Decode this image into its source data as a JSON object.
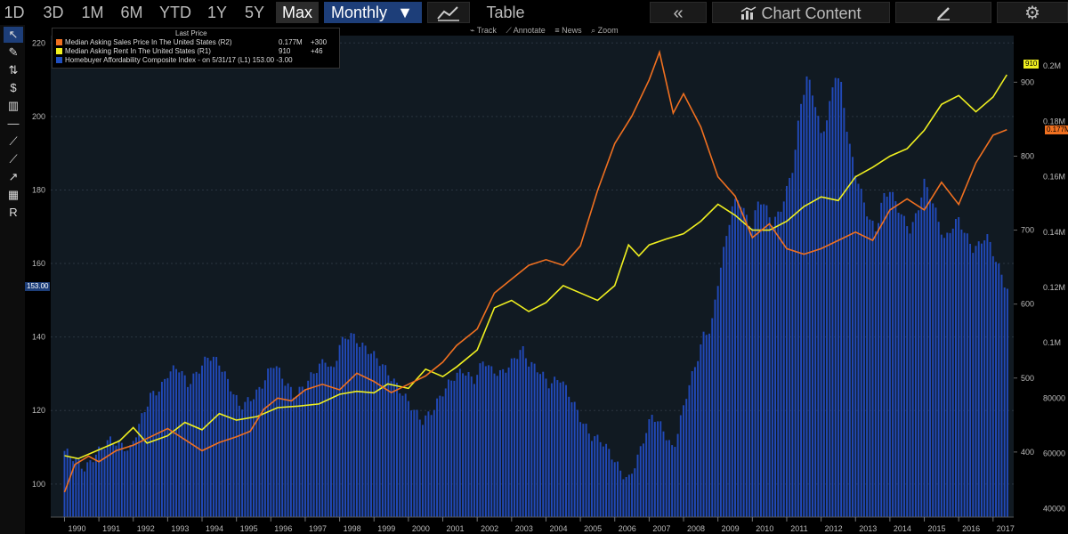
{
  "toolbar": {
    "ranges": [
      "1D",
      "3D",
      "1M",
      "6M",
      "YTD",
      "1Y",
      "5Y",
      "Max"
    ],
    "active_range": "Max",
    "frequency": "Monthly",
    "frequency_arrow": "▼",
    "table_label": "Table",
    "back_label": "«",
    "chart_content_label": "Chart Content",
    "edit_icon": "edit-icon",
    "settings_icon": "gear-icon"
  },
  "subtoolbar": [
    "Track",
    "Annotate",
    "News",
    "Zoom"
  ],
  "left_tools": [
    "cursor-icon",
    "pen-icon",
    "percent-icon",
    "dollar-icon",
    "chart-type-icon",
    "horizontal-line-icon",
    "trend-line-icon",
    "segment-icon",
    "ray-icon",
    "fill-icon",
    "text-icon"
  ],
  "legend": {
    "title": "Last Price",
    "items": [
      {
        "label": "Median Asking Sales Price In The United States  (R2)",
        "value": "0.177M",
        "change": "+300",
        "color": "#f07020"
      },
      {
        "label": "Median Asking Rent In The United States  (R1)",
        "value": "910",
        "change": "+46",
        "color": "#f0f020"
      },
      {
        "label": "Homebuyer Affordability Composite Index -  on 5/31/17  (L1)",
        "value": "153.00",
        "change": "-3.00",
        "color": "#1f4fc0"
      }
    ]
  },
  "chart_data": {
    "type": "bar",
    "x_ticks": [
      "1990",
      "1991",
      "1992",
      "1993",
      "1994",
      "1995",
      "1996",
      "1997",
      "1998",
      "1999",
      "2000",
      "2001",
      "2002",
      "2003",
      "2004",
      "2005",
      "2006",
      "2007",
      "2008",
      "2009",
      "2010",
      "2011",
      "2012",
      "2013",
      "2014",
      "2015",
      "2016",
      "2017"
    ],
    "left_axis": {
      "ticks": [
        100,
        120,
        140,
        160,
        180,
        200,
        220
      ],
      "ylim": [
        91,
        222
      ],
      "last_tag": "153.00"
    },
    "right1_axis": {
      "ticks": [
        400,
        500,
        600,
        700,
        800,
        900
      ],
      "ylim": [
        312,
        963
      ],
      "last_tag": "910"
    },
    "right2_axis": {
      "ticks": [
        "40000",
        "60000",
        "80000",
        "0.1M",
        "0.12M",
        "0.14M",
        "0.16M",
        "0.18M",
        "0.2M"
      ],
      "tick_values": [
        40000,
        60000,
        80000,
        100000,
        120000,
        140000,
        160000,
        180000,
        200000
      ],
      "ylim": [
        37000,
        211000
      ],
      "last_tag": "0.177M"
    },
    "grid": true,
    "legend_position": "top-left",
    "series": [
      {
        "name": "Homebuyer Affordability Composite Index",
        "axis": "left",
        "type": "bar",
        "color": "#2149b8",
        "points": [
          [
            1990.0,
            109
          ],
          [
            1990.3,
            107
          ],
          [
            1990.6,
            104
          ],
          [
            1990.9,
            108
          ],
          [
            1991.3,
            112
          ],
          [
            1991.6,
            111
          ],
          [
            1991.9,
            109
          ],
          [
            1992.2,
            117
          ],
          [
            1992.5,
            124
          ],
          [
            1992.8,
            126
          ],
          [
            1993.0,
            130
          ],
          [
            1993.3,
            132
          ],
          [
            1993.6,
            127
          ],
          [
            1993.9,
            131
          ],
          [
            1994.2,
            135
          ],
          [
            1994.5,
            133
          ],
          [
            1994.8,
            127
          ],
          [
            1995.1,
            121
          ],
          [
            1995.4,
            123
          ],
          [
            1995.7,
            126
          ],
          [
            1995.9,
            130
          ],
          [
            1996.1,
            133
          ],
          [
            1996.4,
            128
          ],
          [
            1996.7,
            124
          ],
          [
            1997.0,
            127
          ],
          [
            1997.3,
            131
          ],
          [
            1997.6,
            134
          ],
          [
            1997.8,
            130
          ],
          [
            1998.0,
            138
          ],
          [
            1998.3,
            141
          ],
          [
            1998.6,
            138
          ],
          [
            1998.9,
            136
          ],
          [
            1999.2,
            133
          ],
          [
            1999.5,
            129
          ],
          [
            1999.8,
            125
          ],
          [
            2000.1,
            121
          ],
          [
            2000.4,
            117
          ],
          [
            2000.7,
            120
          ],
          [
            2001.0,
            125
          ],
          [
            2001.3,
            129
          ],
          [
            2001.6,
            131
          ],
          [
            2001.9,
            128
          ],
          [
            2002.2,
            134
          ],
          [
            2002.4,
            131
          ],
          [
            2002.7,
            130
          ],
          [
            2003.0,
            133
          ],
          [
            2003.3,
            137
          ],
          [
            2003.5,
            133
          ],
          [
            2003.8,
            131
          ],
          [
            2004.1,
            127
          ],
          [
            2004.4,
            129
          ],
          [
            2004.7,
            124
          ],
          [
            2005.0,
            118
          ],
          [
            2005.3,
            113
          ],
          [
            2005.6,
            112
          ],
          [
            2005.9,
            108
          ],
          [
            2006.2,
            103
          ],
          [
            2006.4,
            101
          ],
          [
            2006.7,
            108
          ],
          [
            2006.9,
            114
          ],
          [
            2007.1,
            119
          ],
          [
            2007.4,
            115
          ],
          [
            2007.7,
            109
          ],
          [
            2007.9,
            117
          ],
          [
            2008.1,
            125
          ],
          [
            2008.4,
            134
          ],
          [
            2008.6,
            141
          ],
          [
            2008.8,
            142
          ],
          [
            2009.0,
            155
          ],
          [
            2009.2,
            165
          ],
          [
            2009.4,
            175
          ],
          [
            2009.6,
            178
          ],
          [
            2009.8,
            173
          ],
          [
            2010.0,
            170
          ],
          [
            2010.2,
            178
          ],
          [
            2010.4,
            175
          ],
          [
            2010.6,
            171
          ],
          [
            2010.8,
            174
          ],
          [
            2011.0,
            180
          ],
          [
            2011.2,
            187
          ],
          [
            2011.4,
            203
          ],
          [
            2011.6,
            211
          ],
          [
            2011.8,
            205
          ],
          [
            2012.0,
            195
          ],
          [
            2012.2,
            200
          ],
          [
            2012.4,
            212
          ],
          [
            2012.6,
            208
          ],
          [
            2012.8,
            193
          ],
          [
            2013.0,
            185
          ],
          [
            2013.2,
            178
          ],
          [
            2013.4,
            172
          ],
          [
            2013.6,
            169
          ],
          [
            2013.8,
            178
          ],
          [
            2014.0,
            180
          ],
          [
            2014.2,
            176
          ],
          [
            2014.4,
            172
          ],
          [
            2014.6,
            169
          ],
          [
            2014.8,
            174
          ],
          [
            2015.0,
            182
          ],
          [
            2015.2,
            178
          ],
          [
            2015.4,
            172
          ],
          [
            2015.6,
            166
          ],
          [
            2015.8,
            170
          ],
          [
            2016.0,
            172
          ],
          [
            2016.2,
            168
          ],
          [
            2016.4,
            164
          ],
          [
            2016.6,
            165
          ],
          [
            2016.8,
            168
          ],
          [
            2017.0,
            163
          ],
          [
            2017.2,
            158
          ],
          [
            2017.4,
            153
          ]
        ]
      },
      {
        "name": "Median Asking Rent In The United States",
        "axis": "right1",
        "type": "line",
        "color": "#f0f020",
        "points": [
          [
            1990.0,
            395
          ],
          [
            1990.4,
            391
          ],
          [
            1991.0,
            403
          ],
          [
            1991.6,
            415
          ],
          [
            1992.0,
            433
          ],
          [
            1992.4,
            412
          ],
          [
            1993.0,
            422
          ],
          [
            1993.5,
            440
          ],
          [
            1994.0,
            430
          ],
          [
            1994.5,
            452
          ],
          [
            1995.0,
            443
          ],
          [
            1995.6,
            448
          ],
          [
            1996.2,
            460
          ],
          [
            1996.8,
            462
          ],
          [
            1997.4,
            465
          ],
          [
            1998.0,
            478
          ],
          [
            1998.5,
            482
          ],
          [
            1999.0,
            480
          ],
          [
            1999.4,
            492
          ],
          [
            2000.0,
            486
          ],
          [
            2000.5,
            512
          ],
          [
            2001.0,
            502
          ],
          [
            2001.4,
            515
          ],
          [
            2002.0,
            538
          ],
          [
            2002.5,
            595
          ],
          [
            2003.0,
            605
          ],
          [
            2003.5,
            590
          ],
          [
            2004.0,
            602
          ],
          [
            2004.5,
            625
          ],
          [
            2005.0,
            615
          ],
          [
            2005.5,
            605
          ],
          [
            2006.0,
            625
          ],
          [
            2006.4,
            680
          ],
          [
            2006.7,
            665
          ],
          [
            2007.0,
            680
          ],
          [
            2007.5,
            688
          ],
          [
            2008.0,
            695
          ],
          [
            2008.5,
            712
          ],
          [
            2009.0,
            735
          ],
          [
            2009.5,
            720
          ],
          [
            2010.0,
            700
          ],
          [
            2010.5,
            700
          ],
          [
            2011.0,
            712
          ],
          [
            2011.5,
            732
          ],
          [
            2012.0,
            745
          ],
          [
            2012.5,
            740
          ],
          [
            2013.0,
            772
          ],
          [
            2013.5,
            785
          ],
          [
            2014.0,
            800
          ],
          [
            2014.5,
            810
          ],
          [
            2015.0,
            835
          ],
          [
            2015.5,
            870
          ],
          [
            2016.0,
            882
          ],
          [
            2016.5,
            860
          ],
          [
            2017.0,
            880
          ],
          [
            2017.4,
            910
          ]
        ]
      },
      {
        "name": "Median Asking Sales Price In The United States",
        "axis": "right2",
        "type": "line",
        "color": "#f07020",
        "points": [
          [
            1990.0,
            46000
          ],
          [
            1990.3,
            56000
          ],
          [
            1990.7,
            59000
          ],
          [
            1991.0,
            57000
          ],
          [
            1991.5,
            61000
          ],
          [
            1992.0,
            63000
          ],
          [
            1992.5,
            66000
          ],
          [
            1993.0,
            69000
          ],
          [
            1993.5,
            65000
          ],
          [
            1994.0,
            61000
          ],
          [
            1994.5,
            64000
          ],
          [
            1995.0,
            66000
          ],
          [
            1995.4,
            68000
          ],
          [
            1995.8,
            76000
          ],
          [
            1996.2,
            80000
          ],
          [
            1996.6,
            79000
          ],
          [
            1997.0,
            83000
          ],
          [
            1997.5,
            85000
          ],
          [
            1998.0,
            83000
          ],
          [
            1998.5,
            89000
          ],
          [
            1999.0,
            86000
          ],
          [
            1999.5,
            82000
          ],
          [
            2000.0,
            85000
          ],
          [
            2000.5,
            88000
          ],
          [
            2001.0,
            93000
          ],
          [
            2001.4,
            99000
          ],
          [
            2002.0,
            105000
          ],
          [
            2002.5,
            118000
          ],
          [
            2003.0,
            123000
          ],
          [
            2003.5,
            128000
          ],
          [
            2004.0,
            130000
          ],
          [
            2004.5,
            128000
          ],
          [
            2005.0,
            135000
          ],
          [
            2005.5,
            155000
          ],
          [
            2006.0,
            172000
          ],
          [
            2006.5,
            182000
          ],
          [
            2007.0,
            195000
          ],
          [
            2007.3,
            205000
          ],
          [
            2007.7,
            183000
          ],
          [
            2008.0,
            190000
          ],
          [
            2008.5,
            178000
          ],
          [
            2009.0,
            160000
          ],
          [
            2009.5,
            153000
          ],
          [
            2010.0,
            138000
          ],
          [
            2010.5,
            143000
          ],
          [
            2011.0,
            134000
          ],
          [
            2011.5,
            132000
          ],
          [
            2012.0,
            134000
          ],
          [
            2012.5,
            137000
          ],
          [
            2013.0,
            140000
          ],
          [
            2013.5,
            137000
          ],
          [
            2014.0,
            148000
          ],
          [
            2014.5,
            152000
          ],
          [
            2015.0,
            148000
          ],
          [
            2015.5,
            158000
          ],
          [
            2016.0,
            150000
          ],
          [
            2016.5,
            165000
          ],
          [
            2017.0,
            175000
          ],
          [
            2017.4,
            177000
          ]
        ]
      }
    ]
  }
}
